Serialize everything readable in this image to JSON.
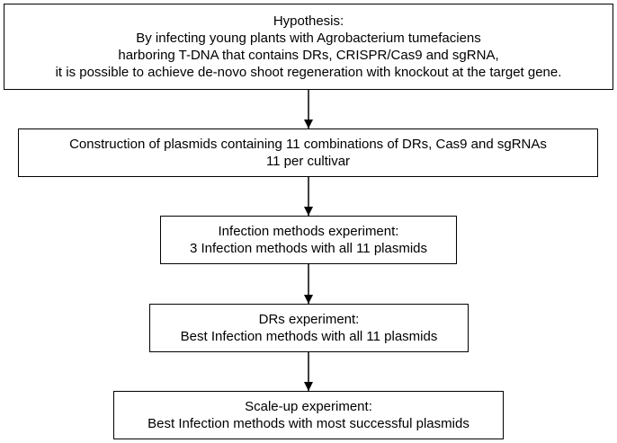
{
  "boxes": [
    {
      "lines": [
        "Hypothesis:",
        "By infecting young plants with Agrobacterium tumefaciens",
        "harboring T-DNA that contains DRs, CRISPR/Cas9 and sgRNA,",
        "it is possible to achieve de-novo shoot regeneration with knockout at the target gene."
      ]
    },
    {
      "lines": [
        "Construction of plasmids containing 11 combinations of DRs, Cas9 and sgRNAs",
        "11 per cultivar"
      ]
    },
    {
      "lines": [
        "Infection methods experiment:",
        "3 Infection methods with all 11 plasmids"
      ]
    },
    {
      "lines": [
        "DRs experiment:",
        "Best Infection methods with all 11 plasmids"
      ]
    },
    {
      "lines": [
        "Scale-up experiment:",
        "Best Infection methods with most successful plasmids"
      ]
    }
  ]
}
